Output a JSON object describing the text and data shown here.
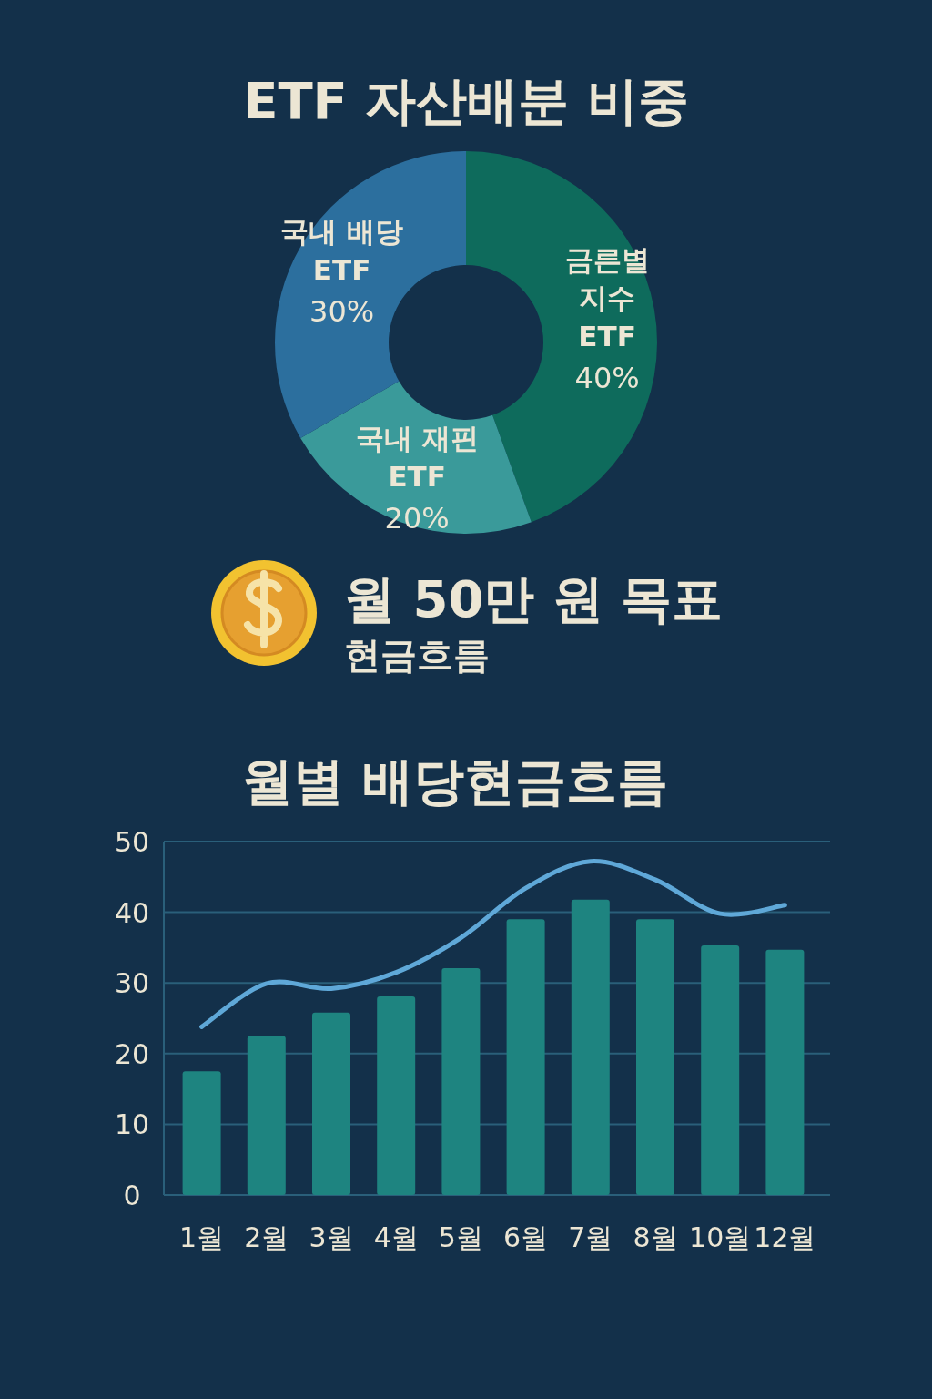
{
  "chart_data": [
    {
      "type": "donut",
      "title": "ETF 자산배분 비중",
      "categories": [
        "금른별 지수 ETF",
        "국내 재핀 ETF",
        "국내 배당 ETF"
      ],
      "values": [
        40,
        20,
        30
      ],
      "colors": [
        "#0e6b5c",
        "#3a9a9a",
        "#2c6f9e"
      ],
      "value_labels": [
        "40%",
        "20%",
        "30%"
      ]
    },
    {
      "type": "other",
      "title": "월 50만 원 목표",
      "subtitle": "현금흐름"
    },
    {
      "type": "bar",
      "title": "월별 배당현금흐름",
      "categories": [
        "1월",
        "2월",
        "3월",
        "4월",
        "5월",
        "6월",
        "7월",
        "8월",
        "10월",
        "12월"
      ],
      "series": [
        {
          "type": "bar",
          "color": "#1e8480",
          "values": [
            17.5,
            22.5,
            25.8,
            28.1,
            32.1,
            39.0,
            41.8,
            39.0,
            35.3,
            34.7
          ]
        },
        {
          "type": "line",
          "color": "#5fa8d8",
          "values": [
            23.8,
            29.9,
            29.2,
            31.5,
            36.4,
            43.4,
            47.2,
            44.6,
            39.8,
            41.0
          ]
        }
      ],
      "ylim": [
        0,
        50
      ],
      "yticks": [
        0,
        10,
        20,
        30,
        40,
        50
      ],
      "grid": "y"
    }
  ]
}
